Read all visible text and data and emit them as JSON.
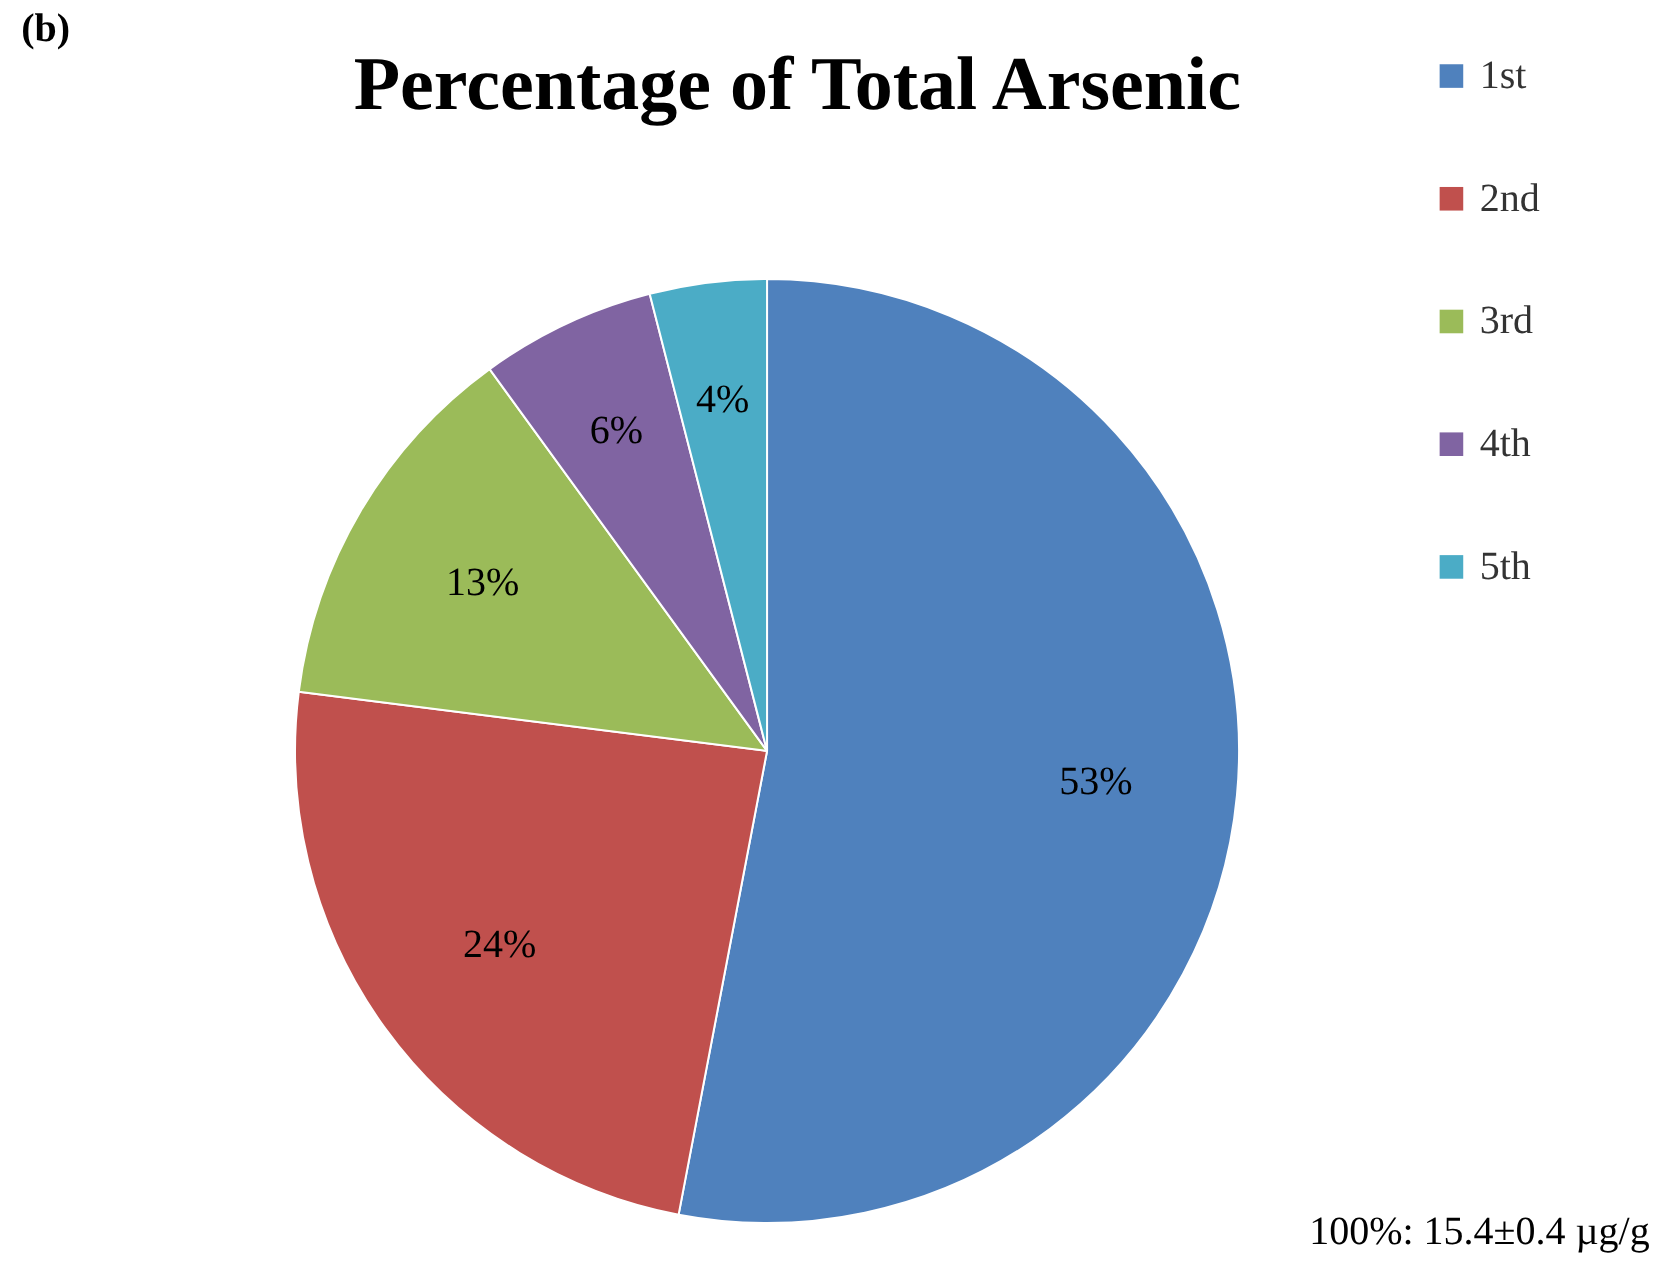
{
  "chart_data": {
    "type": "pie",
    "title": "Percentage of Total Arsenic",
    "categories": [
      "1st",
      "2nd",
      "3rd",
      "4th",
      "5th"
    ],
    "values": [
      53,
      24,
      13,
      6,
      4
    ],
    "colors": [
      "#4f81bd",
      "#c0504d",
      "#9bbb59",
      "#8064a2",
      "#4bacc6"
    ],
    "value_labels": [
      "53%",
      "24%",
      "13%",
      "6%",
      "4%"
    ],
    "legend": "top right",
    "annotations": [
      "(b)",
      "100%: 15.4±0.4 µg/g"
    ]
  }
}
